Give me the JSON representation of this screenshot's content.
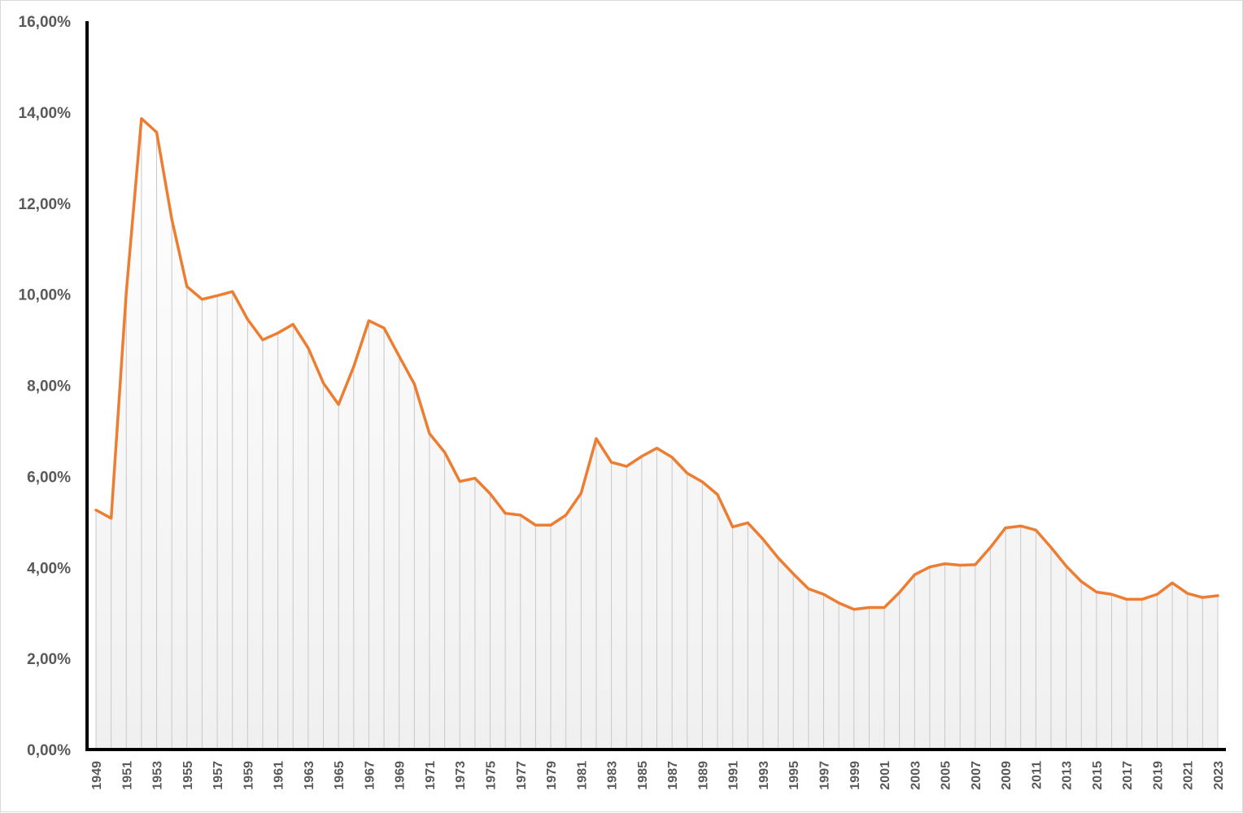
{
  "chart_data": {
    "type": "area",
    "title": "",
    "xlabel": "",
    "ylabel": "",
    "x": [
      1949,
      1950,
      1951,
      1952,
      1953,
      1954,
      1955,
      1956,
      1957,
      1958,
      1959,
      1960,
      1961,
      1962,
      1963,
      1964,
      1965,
      1966,
      1967,
      1968,
      1969,
      1970,
      1971,
      1972,
      1973,
      1974,
      1975,
      1976,
      1977,
      1978,
      1979,
      1980,
      1981,
      1982,
      1983,
      1984,
      1985,
      1986,
      1987,
      1988,
      1989,
      1990,
      1991,
      1992,
      1993,
      1994,
      1995,
      1996,
      1997,
      1998,
      1999,
      2000,
      2001,
      2002,
      2003,
      2004,
      2005,
      2006,
      2007,
      2008,
      2009,
      2010,
      2011,
      2012,
      2013,
      2014,
      2015,
      2016,
      2017,
      2018,
      2019,
      2020,
      2021,
      2022,
      2023
    ],
    "x_tick_labels": [
      "1949",
      "1951",
      "1953",
      "1955",
      "1957",
      "1959",
      "1961",
      "1963",
      "1965",
      "1967",
      "1969",
      "1971",
      "1973",
      "1975",
      "1977",
      "1979",
      "1981",
      "1983",
      "1985",
      "1987",
      "1989",
      "1991",
      "1993",
      "1995",
      "1997",
      "1999",
      "2001",
      "2003",
      "2005",
      "2007",
      "2009",
      "2011",
      "2013",
      "2015",
      "2017",
      "2019",
      "2021",
      "2023"
    ],
    "y_tick_labels": [
      "0,00%",
      "2,00%",
      "4,00%",
      "6,00%",
      "8,00%",
      "10,00%",
      "12,00%",
      "14,00%",
      "16,00%"
    ],
    "ylim": [
      0,
      16
    ],
    "series": [
      {
        "values": [
          5.26,
          5.08,
          10.05,
          13.86,
          13.56,
          11.65,
          10.17,
          9.89,
          9.97,
          10.06,
          9.45,
          9.0,
          9.15,
          9.34,
          8.82,
          8.05,
          7.58,
          8.41,
          9.42,
          9.26,
          8.64,
          8.03,
          6.94,
          6.53,
          5.89,
          5.96,
          5.62,
          5.19,
          5.15,
          4.93,
          4.93,
          5.15,
          5.63,
          6.83,
          6.31,
          6.22,
          6.44,
          6.62,
          6.42,
          6.07,
          5.88,
          5.6,
          4.89,
          4.98,
          4.62,
          4.21,
          3.86,
          3.53,
          3.41,
          3.22,
          3.08,
          3.12,
          3.12,
          3.45,
          3.84,
          4.01,
          4.08,
          4.05,
          4.06,
          4.44,
          4.87,
          4.91,
          4.82,
          4.44,
          4.03,
          3.69,
          3.46,
          3.41,
          3.3,
          3.3,
          3.41,
          3.66,
          3.43,
          3.34,
          3.38
        ],
        "color": "#ED7D31"
      }
    ],
    "grid": false,
    "fill_gradient": [
      "#ffffff",
      "#f0f0f0"
    ],
    "drop_line_color": "#c8c8c8",
    "axis_color": "#000000"
  }
}
